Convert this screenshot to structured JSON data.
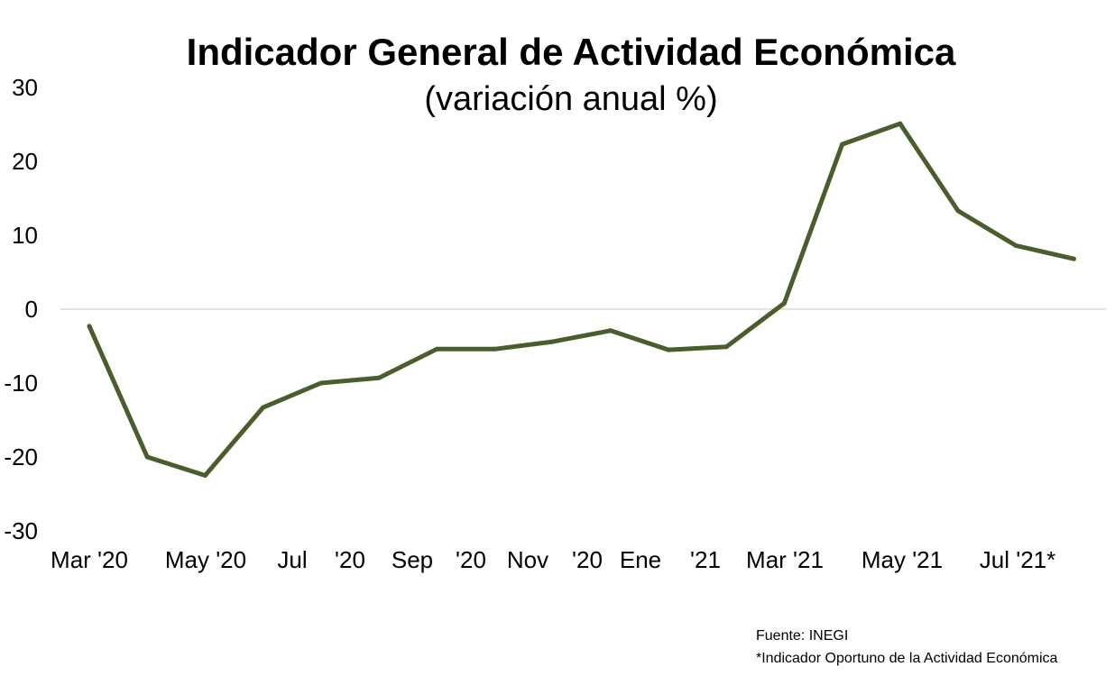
{
  "chart_data": {
    "type": "line",
    "title": "Indicador General de Actividad Económica",
    "subtitle": "(variación anual %)",
    "xlabel": "",
    "ylabel": "",
    "ylim": [
      -30,
      30
    ],
    "yticks": [
      30,
      20,
      10,
      0,
      -10,
      -20,
      -30
    ],
    "grid": false,
    "legend": "none",
    "x_tick_labels": [
      "Mar '20",
      "May '20",
      "Jul",
      "'20",
      "Sep",
      "'20",
      "Nov",
      "'20",
      "Ene",
      "'21",
      "Mar '21",
      "May '21",
      "Jul '21*"
    ],
    "series": [
      {
        "color": "#4a5e2c",
        "points": [
          {
            "x": "Mar '20",
            "y": -2.3
          },
          {
            "x": "Apr '20",
            "y": -20.0
          },
          {
            "x": "May '20",
            "y": -22.5
          },
          {
            "x": "Jun '20",
            "y": -13.3
          },
          {
            "x": "Jul '20",
            "y": -10.0
          },
          {
            "x": "Aug '20",
            "y": -9.3
          },
          {
            "x": "Sep '20",
            "y": -5.4
          },
          {
            "x": "Oct '20",
            "y": -5.4
          },
          {
            "x": "Nov '20",
            "y": -4.4
          },
          {
            "x": "Dec '20",
            "y": -2.9
          },
          {
            "x": "Ene '21",
            "y": -5.5
          },
          {
            "x": "Feb '21",
            "y": -5.1
          },
          {
            "x": "Mar '21",
            "y": 0.8
          },
          {
            "x": "Apr '21",
            "y": 22.3
          },
          {
            "x": "May '21",
            "y": 25.1
          },
          {
            "x": "Jun '21",
            "y": 13.3
          },
          {
            "x": "Jul '21*",
            "y": 8.6
          },
          {
            "x": "Aug '21*",
            "y": 6.8
          }
        ]
      }
    ]
  },
  "footnotes": {
    "source": "Fuente: INEGI",
    "note": "*Indicador Oportuno de la Actividad Económica"
  }
}
